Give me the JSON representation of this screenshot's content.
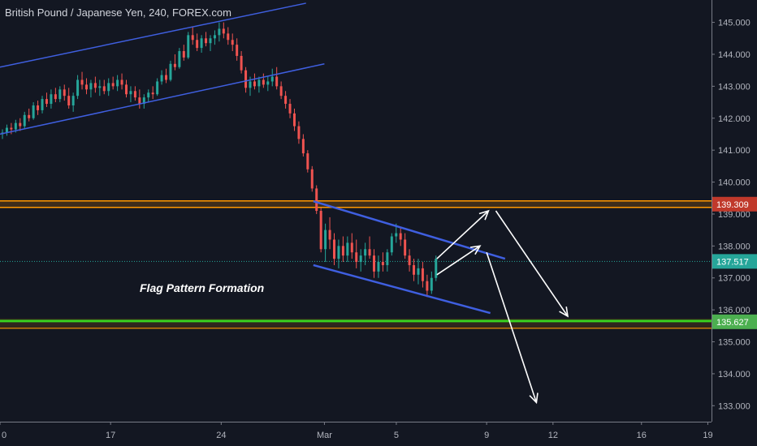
{
  "chart_data": {
    "type": "candlestick",
    "title": "British Pound / Japanese Yen, 240, FOREX.com",
    "ylim": [
      132.5,
      145.7
    ],
    "xlim": [
      0,
      19.3
    ],
    "y_ticks": [
      "133.000",
      "134.000",
      "135.000",
      "136.000",
      "137.000",
      "138.000",
      "139.000",
      "140.000",
      "141.000",
      "142.000",
      "143.000",
      "144.000",
      "145.000"
    ],
    "x_ticks": [
      {
        "label": "0",
        "x": 0
      },
      {
        "label": "17",
        "x": 3
      },
      {
        "label": "24",
        "x": 6
      },
      {
        "label": "Mar",
        "x": 8.8
      },
      {
        "label": "5",
        "x": 10.75
      },
      {
        "label": "9",
        "x": 13.2
      },
      {
        "label": "12",
        "x": 15.0
      },
      {
        "label": "16",
        "x": 17.4
      },
      {
        "label": "19",
        "x": 19.2
      }
    ],
    "horizontal_levels": [
      {
        "name": "resistance",
        "value": 139.309,
        "label": "139.309",
        "color": "#ff9800",
        "badge_color": "#c0392b"
      },
      {
        "name": "current-price",
        "value": 137.517,
        "label": "137.517",
        "color": "#26a69a",
        "badge_color": "#26a69a"
      },
      {
        "name": "support",
        "value": 135.627,
        "label": "135.627",
        "color": "#39d11f",
        "badge_color": "#4caf50"
      }
    ],
    "trend_lines": [
      {
        "name": "upper-rising-channel",
        "from": [
          0,
          143.6
        ],
        "to": [
          8.3,
          145.6
        ]
      },
      {
        "name": "lower-rising-channel",
        "from": [
          0,
          141.5
        ],
        "to": [
          8.8,
          143.7
        ]
      },
      {
        "name": "flag-upper",
        "from": [
          8.5,
          139.4
        ],
        "to": [
          13.7,
          137.6
        ]
      },
      {
        "name": "flag-lower",
        "from": [
          8.5,
          137.4
        ],
        "to": [
          13.3,
          135.9
        ]
      }
    ],
    "arrows": [
      {
        "name": "arrow-up-short",
        "from": [
          11.85,
          137.1
        ],
        "to": [
          13.02,
          138.0
        ]
      },
      {
        "name": "arrow-up-long",
        "from": [
          11.85,
          137.6
        ],
        "to": [
          13.25,
          139.1
        ]
      },
      {
        "name": "arrow-down-short",
        "from": [
          13.45,
          139.1
        ],
        "to": [
          15.4,
          135.8
        ]
      },
      {
        "name": "arrow-down-long",
        "from": [
          13.2,
          137.8
        ],
        "to": [
          14.55,
          133.1
        ]
      }
    ],
    "annotations": [
      {
        "text": "Flag Pattern Formation"
      }
    ],
    "candles": [
      [
        0.0,
        141.5,
        141.65,
        141.35,
        141.55
      ],
      [
        0.12,
        141.55,
        141.8,
        141.45,
        141.7
      ],
      [
        0.24,
        141.7,
        141.85,
        141.5,
        141.65
      ],
      [
        0.36,
        141.65,
        141.95,
        141.55,
        141.85
      ],
      [
        0.48,
        141.85,
        142.0,
        141.6,
        141.75
      ],
      [
        0.6,
        141.75,
        142.2,
        141.65,
        142.1
      ],
      [
        0.72,
        142.1,
        142.3,
        141.9,
        142.0
      ],
      [
        0.84,
        142.0,
        142.5,
        141.95,
        142.4
      ],
      [
        0.96,
        142.4,
        142.55,
        142.1,
        142.25
      ],
      [
        1.08,
        142.25,
        142.7,
        142.15,
        142.6
      ],
      [
        1.2,
        142.6,
        142.8,
        142.35,
        142.45
      ],
      [
        1.32,
        142.45,
        142.9,
        142.3,
        142.75
      ],
      [
        1.44,
        142.75,
        142.95,
        142.5,
        142.6
      ],
      [
        1.56,
        142.6,
        143.0,
        142.5,
        142.9
      ],
      [
        1.68,
        142.9,
        143.05,
        142.55,
        142.7
      ],
      [
        1.8,
        142.7,
        142.95,
        142.3,
        142.4
      ],
      [
        1.92,
        142.4,
        142.8,
        142.2,
        142.7
      ],
      [
        2.04,
        142.7,
        143.35,
        142.6,
        143.2
      ],
      [
        2.16,
        143.2,
        143.45,
        142.9,
        143.05
      ],
      [
        2.28,
        143.05,
        143.25,
        142.75,
        142.9
      ],
      [
        2.4,
        142.9,
        143.2,
        142.65,
        143.1
      ],
      [
        2.52,
        143.1,
        143.3,
        142.8,
        142.95
      ],
      [
        2.64,
        142.95,
        143.2,
        142.7,
        143.0
      ],
      [
        2.76,
        143.0,
        143.2,
        142.75,
        142.85
      ],
      [
        2.88,
        142.85,
        143.25,
        142.7,
        143.1
      ],
      [
        3.0,
        143.1,
        143.3,
        142.9,
        143.0
      ],
      [
        3.12,
        143.0,
        143.35,
        142.85,
        143.2
      ],
      [
        3.24,
        143.2,
        143.4,
        142.9,
        143.05
      ],
      [
        3.36,
        143.05,
        143.2,
        142.65,
        142.75
      ],
      [
        3.48,
        142.75,
        143.0,
        142.5,
        142.85
      ],
      [
        3.6,
        142.85,
        143.0,
        142.55,
        142.65
      ],
      [
        3.72,
        142.65,
        142.9,
        142.3,
        142.45
      ],
      [
        3.84,
        142.45,
        142.75,
        142.3,
        142.65
      ],
      [
        3.96,
        142.65,
        142.9,
        142.5,
        142.8
      ],
      [
        4.08,
        142.8,
        143.0,
        142.6,
        142.75
      ],
      [
        4.2,
        142.75,
        143.25,
        142.7,
        143.15
      ],
      [
        4.32,
        143.15,
        143.5,
        143.05,
        143.35
      ],
      [
        4.44,
        143.35,
        143.55,
        143.1,
        143.2
      ],
      [
        4.56,
        143.2,
        143.8,
        143.15,
        143.7
      ],
      [
        4.68,
        143.7,
        144.0,
        143.5,
        143.6
      ],
      [
        4.8,
        143.6,
        144.2,
        143.55,
        144.1
      ],
      [
        4.92,
        144.1,
        144.3,
        143.8,
        143.9
      ],
      [
        5.04,
        143.9,
        144.7,
        143.85,
        144.6
      ],
      [
        5.16,
        144.6,
        144.85,
        144.3,
        144.45
      ],
      [
        5.28,
        144.45,
        144.65,
        144.1,
        144.2
      ],
      [
        5.4,
        144.2,
        144.6,
        144.05,
        144.5
      ],
      [
        5.52,
        144.5,
        144.7,
        144.25,
        144.35
      ],
      [
        5.64,
        144.35,
        144.6,
        144.1,
        144.5
      ],
      [
        5.76,
        144.5,
        144.75,
        144.3,
        144.6
      ],
      [
        5.88,
        144.6,
        145.0,
        144.4,
        144.8
      ],
      [
        6.0,
        144.8,
        145.0,
        144.5,
        144.65
      ],
      [
        6.12,
        144.65,
        144.85,
        144.3,
        144.45
      ],
      [
        6.24,
        144.45,
        144.65,
        144.1,
        144.3
      ],
      [
        6.36,
        144.3,
        144.5,
        143.8,
        143.95
      ],
      [
        6.48,
        143.95,
        144.1,
        143.4,
        143.5
      ],
      [
        6.6,
        143.5,
        143.6,
        142.8,
        142.95
      ],
      [
        6.72,
        142.95,
        143.3,
        142.7,
        143.15
      ],
      [
        6.84,
        143.15,
        143.4,
        142.9,
        143.0
      ],
      [
        6.96,
        143.0,
        143.3,
        142.8,
        143.2
      ],
      [
        7.08,
        143.2,
        143.4,
        142.95,
        143.05
      ],
      [
        7.2,
        143.05,
        143.3,
        142.85,
        143.15
      ],
      [
        7.32,
        143.15,
        143.55,
        143.0,
        143.3
      ],
      [
        7.44,
        143.3,
        143.6,
        142.9,
        143.0
      ],
      [
        7.56,
        143.0,
        143.15,
        142.6,
        142.7
      ],
      [
        7.68,
        142.7,
        142.85,
        142.3,
        142.45
      ],
      [
        7.8,
        142.45,
        142.6,
        142.0,
        142.15
      ],
      [
        7.92,
        142.15,
        142.3,
        141.6,
        141.75
      ],
      [
        8.04,
        141.75,
        141.9,
        141.2,
        141.35
      ],
      [
        8.16,
        141.35,
        141.5,
        140.8,
        140.9
      ],
      [
        8.28,
        140.9,
        141.0,
        140.3,
        140.4
      ],
      [
        8.4,
        140.4,
        140.5,
        139.7,
        139.8
      ],
      [
        8.52,
        139.8,
        139.9,
        139.0,
        139.1
      ],
      [
        8.64,
        139.1,
        139.2,
        137.8,
        137.9
      ],
      [
        8.76,
        137.9,
        138.7,
        137.5,
        138.5
      ],
      [
        8.88,
        138.5,
        138.9,
        137.9,
        138.2
      ],
      [
        9.0,
        138.2,
        138.4,
        137.4,
        137.6
      ],
      [
        9.12,
        137.6,
        138.2,
        137.3,
        138.0
      ],
      [
        9.24,
        138.0,
        138.3,
        137.5,
        137.7
      ],
      [
        9.36,
        137.7,
        138.3,
        137.5,
        138.1
      ],
      [
        9.48,
        138.1,
        138.4,
        137.6,
        137.8
      ],
      [
        9.6,
        137.8,
        138.2,
        137.3,
        137.5
      ],
      [
        9.72,
        137.5,
        137.9,
        137.2,
        137.7
      ],
      [
        9.84,
        137.7,
        138.1,
        137.4,
        137.9
      ],
      [
        9.96,
        137.9,
        138.3,
        137.6,
        137.7
      ],
      [
        10.08,
        137.7,
        137.9,
        137.0,
        137.2
      ],
      [
        10.2,
        137.2,
        137.7,
        137.0,
        137.5
      ],
      [
        10.32,
        137.5,
        137.8,
        137.2,
        137.4
      ],
      [
        10.44,
        137.4,
        137.9,
        137.2,
        137.8
      ],
      [
        10.56,
        137.8,
        138.4,
        137.7,
        138.3
      ],
      [
        10.68,
        138.3,
        138.7,
        138.1,
        138.4
      ],
      [
        10.8,
        138.4,
        138.6,
        138.0,
        138.2
      ],
      [
        10.92,
        138.2,
        138.4,
        137.6,
        137.7
      ],
      [
        11.04,
        137.7,
        137.9,
        137.2,
        137.4
      ],
      [
        11.16,
        137.4,
        137.6,
        136.9,
        137.1
      ],
      [
        11.28,
        137.1,
        137.6,
        136.8,
        137.3
      ],
      [
        11.4,
        137.3,
        137.5,
        136.7,
        136.9
      ],
      [
        11.52,
        136.9,
        137.1,
        136.4,
        136.6
      ],
      [
        11.64,
        136.6,
        137.2,
        136.5,
        137.0
      ],
      [
        11.76,
        137.0,
        137.7,
        136.9,
        137.6
      ]
    ]
  }
}
